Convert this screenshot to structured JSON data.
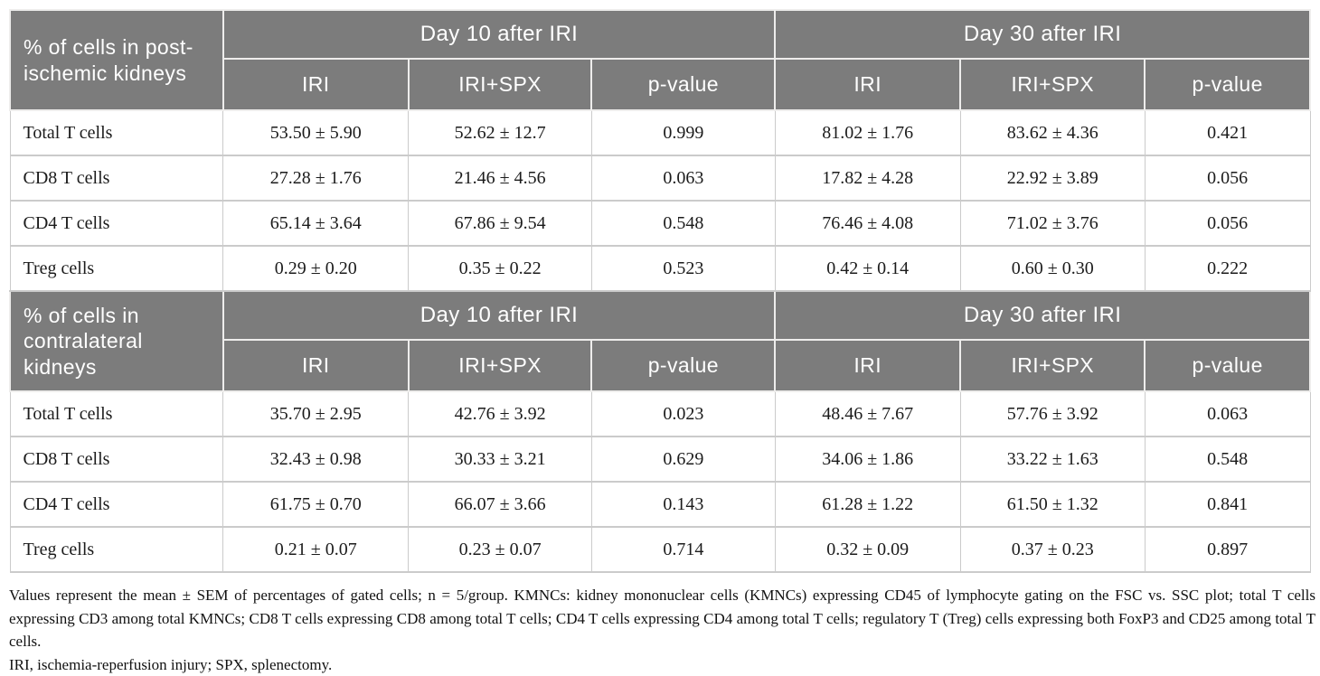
{
  "colors": {
    "header_bg": "#7c7c7c",
    "header_text": "#ffffff",
    "grid_line": "#cbcbcb",
    "header_divider": "#eeedec",
    "body_text": "#1b1b1b"
  },
  "sections": [
    {
      "row_header": "% of cells in post-ischemic kidneys",
      "day10_label": "Day 10 after IRI",
      "day30_label": "Day 30 after IRI",
      "col_labels": [
        "IRI",
        "IRI+SPX",
        "p-value",
        "IRI",
        "IRI+SPX",
        "p-value"
      ],
      "rows": [
        {
          "cells": [
            "Total T cells",
            "53.50 ± 5.90",
            "52.62 ± 12.7",
            "0.999",
            "81.02 ± 1.76",
            "83.62 ± 4.36",
            "0.421"
          ]
        },
        {
          "cells": [
            "CD8 T cells",
            "27.28 ± 1.76",
            "21.46 ± 4.56",
            "0.063",
            "17.82 ± 4.28",
            "22.92 ± 3.89",
            "0.056"
          ]
        },
        {
          "cells": [
            "CD4 T cells",
            "65.14 ± 3.64",
            "67.86 ± 9.54",
            "0.548",
            "76.46 ± 4.08",
            "71.02 ± 3.76",
            "0.056"
          ]
        },
        {
          "cells": [
            "Treg cells",
            "0.29 ± 0.20",
            "0.35 ± 0.22",
            "0.523",
            "0.42 ± 0.14",
            "0.60 ± 0.30",
            "0.222"
          ]
        }
      ]
    },
    {
      "row_header": "% of cells in contralateral kidneys",
      "day10_label": "Day 10 after IRI",
      "day30_label": "Day 30 after IRI",
      "col_labels": [
        "IRI",
        "IRI+SPX",
        "p-value",
        "IRI",
        "IRI+SPX",
        "p-value"
      ],
      "rows": [
        {
          "cells": [
            "Total T cells",
            "35.70 ± 2.95",
            "42.76 ± 3.92",
            "0.023",
            "48.46 ± 7.67",
            "57.76 ± 3.92",
            "0.063"
          ]
        },
        {
          "cells": [
            "CD8 T cells",
            "32.43 ± 0.98",
            "30.33 ± 3.21",
            "0.629",
            "34.06 ± 1.86",
            "33.22 ± 1.63",
            "0.548"
          ]
        },
        {
          "cells": [
            "CD4 T cells",
            "61.75 ± 0.70",
            "66.07 ± 3.66",
            "0.143",
            "61.28 ± 1.22",
            "61.50 ± 1.32",
            "0.841"
          ]
        },
        {
          "cells": [
            "Treg cells",
            "0.21 ± 0.07",
            "0.23 ± 0.07",
            "0.714",
            "0.32 ± 0.09",
            "0.37 ± 0.23",
            "0.897"
          ]
        }
      ]
    }
  ],
  "footnotes": [
    "Values represent the mean ± SEM of percentages of gated cells; n = 5/group. KMNCs: kidney mononuclear cells (KMNCs) expressing CD45 of lymphocyte gating on the FSC vs. SSC plot; total T cells expressing CD3 among total KMNCs; CD8 T cells expressing CD8 among total T cells; CD4 T cells expressing CD4 among total T cells; regulatory T (Treg) cells expressing both FoxP3 and CD25 among total T cells.",
    "IRI, ischemia-reperfusion injury; SPX, splenectomy."
  ]
}
